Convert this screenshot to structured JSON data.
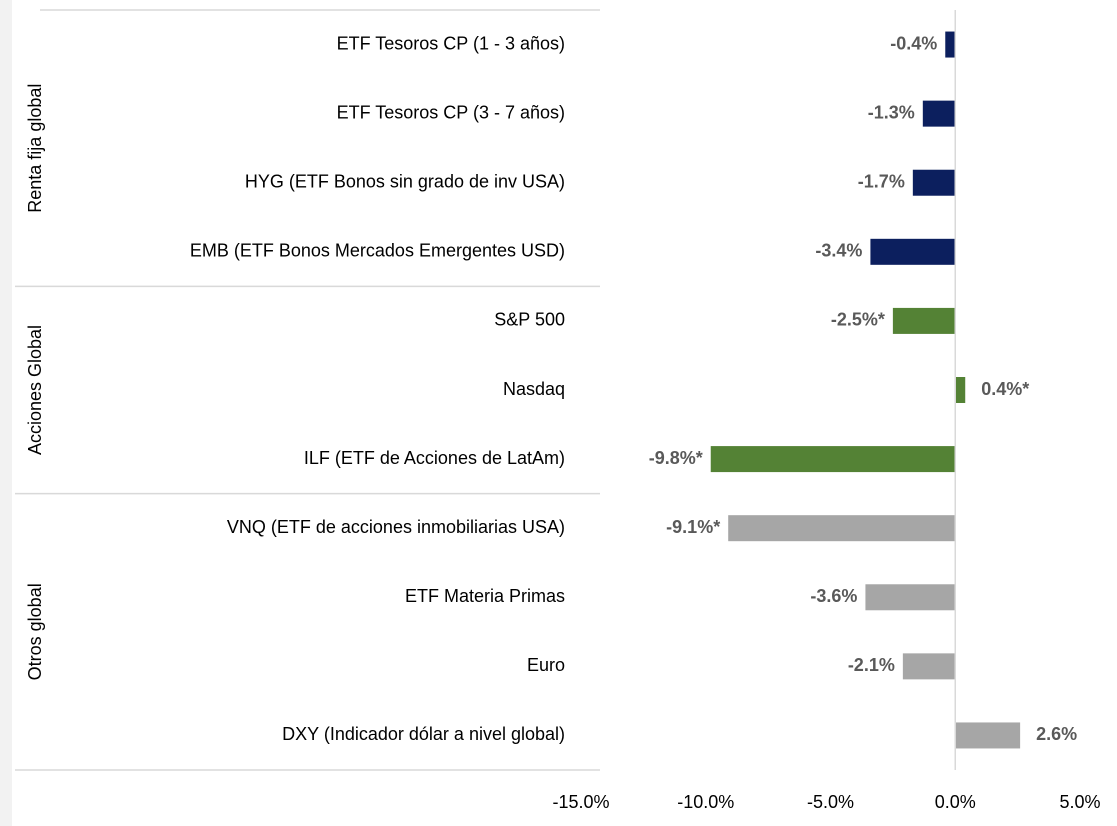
{
  "chart_data": {
    "type": "bar",
    "orientation": "horizontal",
    "groups": [
      {
        "label": "Renta fija global",
        "color": "#0c1f5e",
        "categories": [
          "ETF Tesoros CP (1 - 3 años)",
          "ETF Tesoros CP (3 - 7 años)",
          "HYG (ETF Bonos sin grado de inv USA)",
          "EMB (ETF Bonos Mercados Emergentes USD)"
        ],
        "values": [
          -0.4,
          -1.3,
          -1.7,
          -3.4
        ],
        "value_labels": [
          "-0.4%",
          "-1.3%",
          "-1.7%",
          "-3.4%"
        ]
      },
      {
        "label": "Acciones Global",
        "color": "#548235",
        "categories": [
          "S&P 500",
          "Nasdaq",
          "ILF (ETF de Acciones de LatAm)"
        ],
        "values": [
          -2.5,
          0.4,
          -9.8
        ],
        "value_labels": [
          "-2.5%*",
          "0.4%*",
          "-9.8%*"
        ]
      },
      {
        "label": "Otros global",
        "color": "#a6a6a6",
        "categories": [
          "VNQ (ETF de acciones inmobiliarias USA)",
          "ETF Materia Primas",
          "Euro",
          "DXY (Indicador dólar a nivel global)"
        ],
        "values": [
          -9.1,
          -3.6,
          -2.1,
          2.6
        ],
        "value_labels": [
          "-9.1%*",
          "-3.6%",
          "-2.1%",
          "2.6%"
        ]
      }
    ],
    "xlim": [
      -15,
      5
    ],
    "xticks": [
      {
        "value": -15,
        "label": "-15.0%"
      },
      {
        "value": -10,
        "label": "-10.0%"
      },
      {
        "value": -5,
        "label": "-5.0%"
      },
      {
        "value": 0,
        "label": "0.0%"
      },
      {
        "value": 5,
        "label": "5.0%"
      }
    ]
  }
}
